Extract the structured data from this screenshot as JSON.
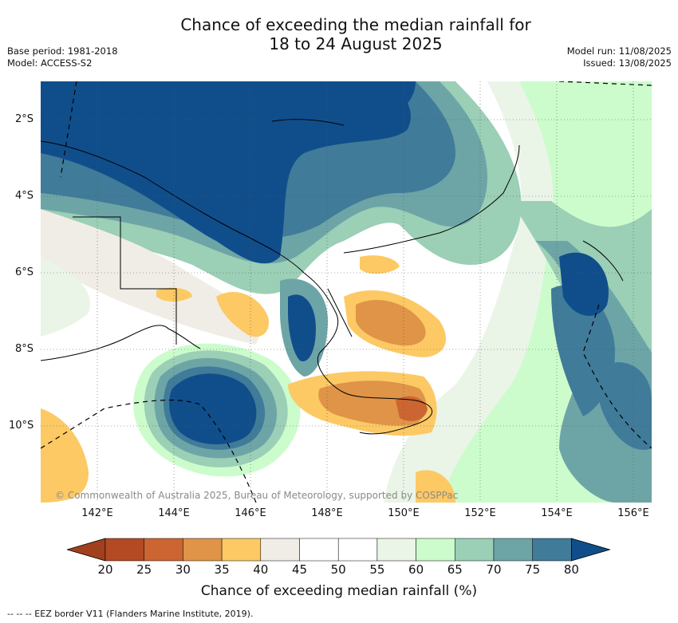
{
  "title_line1": "Chance of exceeding the median rainfall for",
  "title_line2": "18 to 24 August 2025",
  "base_period": "Base period: 1981-2018",
  "model": "Model: ACCESS-S2",
  "model_run": "Model run: 11/08/2025",
  "issued": "Issued: 13/08/2025",
  "copyright": "© Commonwealth of Australia 2025, Bureau of Meteorology, supported by COSPPac",
  "lat_labels": [
    "2°S",
    "4°S",
    "6°S",
    "8°S",
    "10°S"
  ],
  "lon_labels": [
    "142°E",
    "144°E",
    "146°E",
    "148°E",
    "150°E",
    "152°E",
    "154°E",
    "156°E"
  ],
  "colorbar": {
    "ticks": [
      "20",
      "25",
      "30",
      "35",
      "40",
      "45",
      "50",
      "55",
      "60",
      "65",
      "70",
      "75",
      "80"
    ],
    "colors": [
      "#a0401f",
      "#b34a24",
      "#cc6532",
      "#e09448",
      "#fdc964",
      "#f0ede6",
      "#ffffff",
      "#ffffff",
      "#eaf5e8",
      "#ccfccc",
      "#9bcfb6",
      "#6da5a7",
      "#407b99",
      "#104e8b"
    ],
    "title": "Chance of exceeding median rainfall (%)"
  },
  "legend_eez": "--  --  -- EEZ border V11 (Flanders Marine Institute, 2019)."
}
